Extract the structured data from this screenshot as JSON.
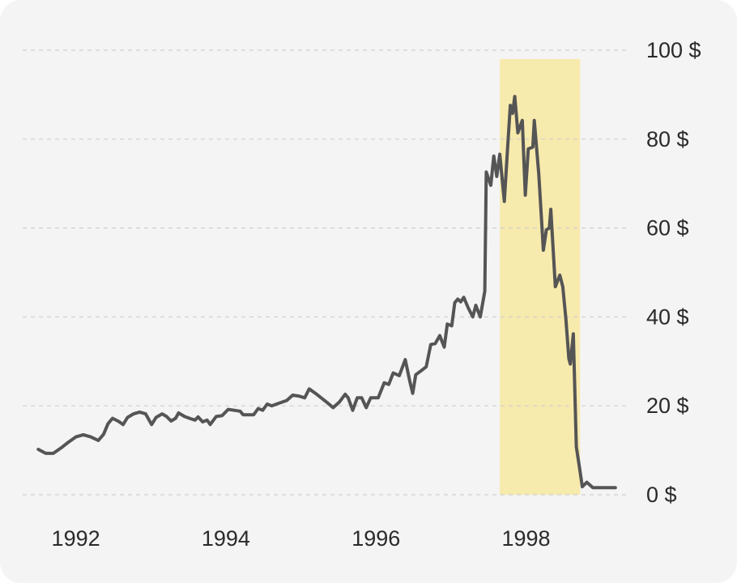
{
  "chart_data": {
    "type": "line",
    "title": "",
    "xlabel": "",
    "ylabel": "",
    "unit": "$",
    "xlim": [
      1991.75,
      1999.65
    ],
    "ylim": [
      0,
      100
    ],
    "grid": true,
    "y_ticks": [
      {
        "value": 0,
        "label": "0 $"
      },
      {
        "value": 20,
        "label": "20 $"
      },
      {
        "value": 40,
        "label": "40 $"
      },
      {
        "value": 60,
        "label": "60 $"
      },
      {
        "value": 80,
        "label": "80 $"
      },
      {
        "value": 100,
        "label": "100 $"
      }
    ],
    "x_ticks": [
      {
        "value": 1992.35,
        "label": "1992"
      },
      {
        "value": 1994.35,
        "label": "1994"
      },
      {
        "value": 1996.35,
        "label": "1996"
      },
      {
        "value": 1998.35,
        "label": "1998"
      }
    ],
    "highlight": {
      "x_start": 1998.0,
      "x_end": 1999.07,
      "y_top": 98,
      "color": "#f7eaad"
    },
    "series": [
      {
        "color": "#555555",
        "points": [
          [
            1991.85,
            10.2
          ],
          [
            1991.95,
            9.3
          ],
          [
            1992.05,
            9.3
          ],
          [
            1992.15,
            10.5
          ],
          [
            1992.25,
            11.8
          ],
          [
            1992.35,
            13.0
          ],
          [
            1992.45,
            13.5
          ],
          [
            1992.55,
            13.0
          ],
          [
            1992.65,
            12.2
          ],
          [
            1992.72,
            13.6
          ],
          [
            1992.78,
            16.0
          ],
          [
            1992.84,
            17.2
          ],
          [
            1992.92,
            16.5
          ],
          [
            1992.98,
            15.8
          ],
          [
            1993.04,
            17.4
          ],
          [
            1993.12,
            18.2
          ],
          [
            1993.2,
            18.6
          ],
          [
            1993.28,
            18.2
          ],
          [
            1993.36,
            15.8
          ],
          [
            1993.42,
            17.4
          ],
          [
            1993.5,
            18.2
          ],
          [
            1993.56,
            17.6
          ],
          [
            1993.62,
            16.6
          ],
          [
            1993.68,
            17.2
          ],
          [
            1993.72,
            18.4
          ],
          [
            1993.8,
            17.6
          ],
          [
            1993.88,
            17.1
          ],
          [
            1993.94,
            16.8
          ],
          [
            1993.98,
            17.5
          ],
          [
            1994.04,
            16.4
          ],
          [
            1994.1,
            16.8
          ],
          [
            1994.14,
            15.8
          ],
          [
            1994.22,
            17.6
          ],
          [
            1994.3,
            17.8
          ],
          [
            1994.38,
            19.2
          ],
          [
            1994.46,
            19.0
          ],
          [
            1994.54,
            18.8
          ],
          [
            1994.58,
            18.0
          ],
          [
            1994.64,
            18.0
          ],
          [
            1994.72,
            18.0
          ],
          [
            1994.78,
            19.4
          ],
          [
            1994.84,
            19.0
          ],
          [
            1994.9,
            20.4
          ],
          [
            1994.96,
            20.0
          ],
          [
            1995.06,
            20.6
          ],
          [
            1995.16,
            21.2
          ],
          [
            1995.24,
            22.4
          ],
          [
            1995.32,
            22.2
          ],
          [
            1995.4,
            21.8
          ],
          [
            1995.46,
            23.8
          ],
          [
            1995.56,
            22.6
          ],
          [
            1995.68,
            21.0
          ],
          [
            1995.78,
            19.6
          ],
          [
            1995.86,
            20.8
          ],
          [
            1995.94,
            22.6
          ],
          [
            1995.98,
            21.8
          ],
          [
            1996.04,
            19.0
          ],
          [
            1996.1,
            21.8
          ],
          [
            1996.16,
            21.8
          ],
          [
            1996.22,
            19.6
          ],
          [
            1996.28,
            21.8
          ],
          [
            1996.38,
            21.8
          ],
          [
            1996.46,
            25.2
          ],
          [
            1996.52,
            24.8
          ],
          [
            1996.58,
            27.4
          ],
          [
            1996.66,
            26.8
          ],
          [
            1996.74,
            30.4
          ],
          [
            1996.8,
            25.6
          ],
          [
            1996.84,
            22.8
          ],
          [
            1996.88,
            27.0
          ],
          [
            1996.96,
            28.0
          ],
          [
            1997.02,
            28.8
          ],
          [
            1997.08,
            33.8
          ],
          [
            1997.14,
            34.0
          ],
          [
            1997.2,
            35.8
          ],
          [
            1997.26,
            33.2
          ],
          [
            1997.3,
            38.4
          ],
          [
            1997.36,
            38.0
          ],
          [
            1997.4,
            43.2
          ],
          [
            1997.44,
            44.0
          ],
          [
            1997.48,
            43.4
          ],
          [
            1997.52,
            44.4
          ],
          [
            1997.58,
            42.0
          ],
          [
            1997.64,
            40.0
          ],
          [
            1997.68,
            42.6
          ],
          [
            1997.74,
            40.0
          ],
          [
            1997.8,
            45.8
          ],
          [
            1997.82,
            72.6
          ],
          [
            1997.88,
            69.6
          ],
          [
            1997.92,
            76.2
          ],
          [
            1997.96,
            71.6
          ],
          [
            1998.0,
            76.6
          ],
          [
            1998.06,
            66.0
          ],
          [
            1998.1,
            77.0
          ],
          [
            1998.14,
            87.6
          ],
          [
            1998.17,
            85.8
          ],
          [
            1998.2,
            89.6
          ],
          [
            1998.24,
            81.4
          ],
          [
            1998.3,
            84.2
          ],
          [
            1998.34,
            67.4
          ],
          [
            1998.38,
            77.8
          ],
          [
            1998.44,
            78.2
          ],
          [
            1998.46,
            84.2
          ],
          [
            1998.52,
            72.0
          ],
          [
            1998.58,
            55.0
          ],
          [
            1998.62,
            59.6
          ],
          [
            1998.66,
            60.0
          ],
          [
            1998.68,
            64.2
          ],
          [
            1998.74,
            46.8
          ],
          [
            1998.8,
            49.4
          ],
          [
            1998.84,
            46.8
          ],
          [
            1998.88,
            39.6
          ],
          [
            1998.92,
            30.6
          ],
          [
            1998.94,
            29.4
          ],
          [
            1998.98,
            36.2
          ],
          [
            1999.02,
            10.8
          ],
          [
            1999.06,
            6.4
          ],
          [
            1999.1,
            1.8
          ],
          [
            1999.16,
            2.8
          ],
          [
            1999.24,
            1.6
          ],
          [
            1999.34,
            1.6
          ],
          [
            1999.44,
            1.6
          ],
          [
            1999.54,
            1.6
          ]
        ]
      }
    ]
  }
}
